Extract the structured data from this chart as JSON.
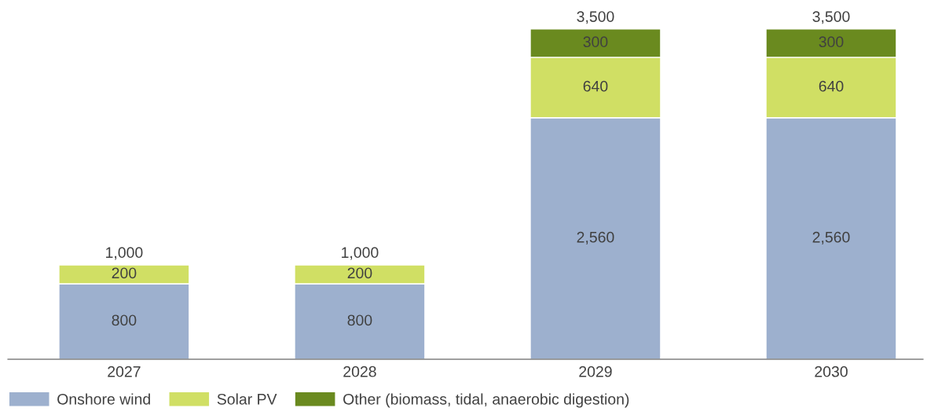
{
  "chart_data": {
    "type": "bar",
    "stacked": true,
    "grid": false,
    "legend": "bottom left",
    "categories": [
      "2027",
      "2028",
      "2029",
      "2030"
    ],
    "series": [
      {
        "name": "Onshore wind",
        "color": "#9db0ce",
        "values": [
          800,
          800,
          2560,
          2560
        ],
        "value_labels": [
          "800",
          "800",
          "2,560",
          "2,560"
        ]
      },
      {
        "name": "Solar PV",
        "color": "#d0df64",
        "values": [
          200,
          200,
          640,
          640
        ],
        "value_labels": [
          "200",
          "200",
          "640",
          "640"
        ]
      },
      {
        "name": "Other (biomass, tidal, anaerobic digestion)",
        "color": "#6a8a1f",
        "values": [
          null,
          null,
          300,
          300
        ],
        "value_labels": [
          null,
          null,
          "300",
          "300"
        ]
      }
    ],
    "totals": [
      "1,000",
      "1,000",
      "3,500",
      "3,500"
    ]
  }
}
